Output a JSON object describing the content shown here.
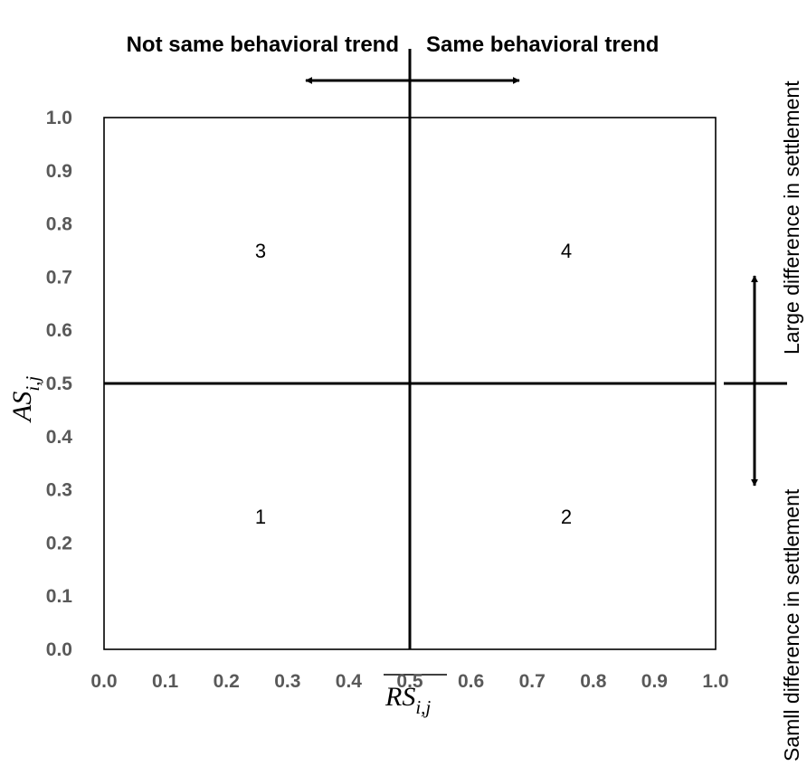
{
  "diagram": {
    "labels": {
      "top_left": "Not same behavioral trend",
      "top_right": "Same behavioral trend",
      "right_upper": "Large difference in settlement",
      "right_lower": "Samll difference in settlement"
    },
    "x_axis": {
      "symbol": "RS",
      "subscript": "i,j",
      "overline": true,
      "range": [
        0.0,
        1.0
      ],
      "divider": 0.5
    },
    "y_axis": {
      "symbol": "AS",
      "subscript": "i,j",
      "range": [
        0.0,
        1.0
      ],
      "divider": 0.5
    },
    "ticks": [
      "0.0",
      "0.1",
      "0.2",
      "0.3",
      "0.4",
      "0.5",
      "0.6",
      "0.7",
      "0.8",
      "0.9",
      "1.0"
    ],
    "quadrants": [
      {
        "label": "3",
        "x": 0.25,
        "y": 0.75
      },
      {
        "label": "4",
        "x": 0.75,
        "y": 0.75
      },
      {
        "label": "1",
        "x": 0.25,
        "y": 0.25
      },
      {
        "label": "2",
        "x": 0.75,
        "y": 0.25
      }
    ],
    "colors": {
      "line": "#000000",
      "tick_text": "#595959"
    }
  }
}
